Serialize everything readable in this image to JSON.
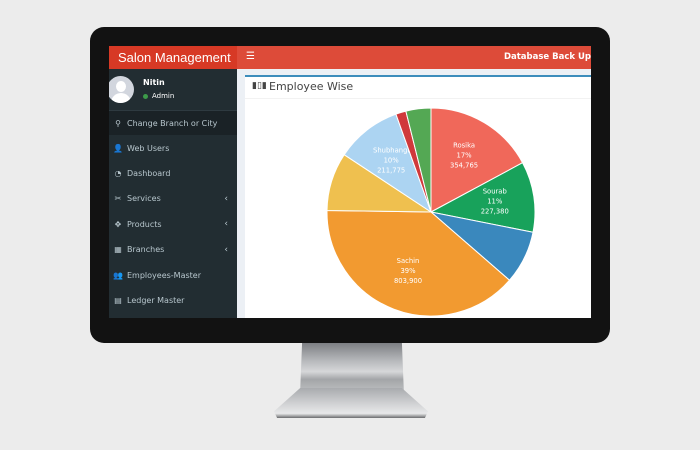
{
  "app": {
    "brand": "Salon Management",
    "menu_toggle_icon": "hamburger-icon",
    "top_action": "Database Back Up"
  },
  "user": {
    "name": "Nitin",
    "role": "Admin",
    "status_color": "#3c9a49"
  },
  "sidebar": {
    "items": [
      {
        "label": "Change Branch or City",
        "icon": "map-marker-icon",
        "glyph": "⚲",
        "has_submenu": false,
        "active": true
      },
      {
        "label": "Web Users",
        "icon": "user-plus-icon",
        "glyph": "👤",
        "has_submenu": false
      },
      {
        "label": "Dashboard",
        "icon": "dashboard-icon",
        "glyph": "◔",
        "has_submenu": false
      },
      {
        "label": "Services",
        "icon": "scissors-icon",
        "glyph": "✂",
        "has_submenu": true
      },
      {
        "label": "Products",
        "icon": "cube-icon",
        "glyph": "✥",
        "has_submenu": true
      },
      {
        "label": "Branches",
        "icon": "building-icon",
        "glyph": "▦",
        "has_submenu": true
      },
      {
        "label": "Employees-Master",
        "icon": "users-icon",
        "glyph": "👥",
        "has_submenu": false
      },
      {
        "label": "Ledger Master",
        "icon": "file-icon",
        "glyph": "▤",
        "has_submenu": false
      }
    ],
    "chevron": "‹"
  },
  "panel": {
    "title": "Employee Wise",
    "icon": "bar-chart-icon",
    "accent": "#3c8dbc"
  },
  "colors": {
    "topbar": "#dd4b39",
    "brand_bg": "#d73925",
    "sidebar_bg": "#222d32"
  },
  "chart_data": {
    "type": "pie",
    "title": "Employee Wise",
    "start_angle_deg": 0,
    "direction": "clockwise",
    "slices": [
      {
        "label": "Rosika",
        "percent": "17%",
        "value": 354765,
        "display_value": "354,765",
        "color": "#f0685a",
        "show_label": true
      },
      {
        "label": "Sourab",
        "percent": "11%",
        "value": 227380,
        "display_value": "227,380",
        "color": "#18a25b",
        "show_label": true
      },
      {
        "label": "",
        "percent": "8%",
        "value": 171000,
        "display_value": "",
        "color": "#3a88bd",
        "show_label": false
      },
      {
        "label": "Sachin",
        "percent": "39%",
        "value": 803900,
        "display_value": "803,900",
        "color": "#f29a30",
        "show_label": true
      },
      {
        "label": "",
        "percent": "9%",
        "value": 187600,
        "display_value": "",
        "color": "#efc04f",
        "show_label": false
      },
      {
        "label": "Shubhangi",
        "percent": "10%",
        "value": 211775,
        "display_value": "211,775",
        "color": "#acd4f2",
        "show_label": true
      },
      {
        "label": "",
        "percent": "2%",
        "value": 33000,
        "display_value": "",
        "color": "#d0393b",
        "show_label": false
      },
      {
        "label": "",
        "percent": "4%",
        "value": 80400,
        "display_value": "",
        "color": "#54a854",
        "show_label": false
      }
    ]
  }
}
